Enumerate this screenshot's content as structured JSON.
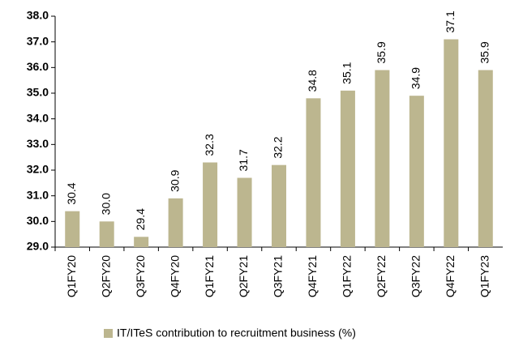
{
  "chart_data": {
    "type": "bar",
    "categories": [
      "Q1FY20",
      "Q2FY20",
      "Q3FY20",
      "Q4FY20",
      "Q1FY21",
      "Q2FY21",
      "Q3FY21",
      "Q4FY21",
      "Q1FY22",
      "Q2FY22",
      "Q3FY22",
      "Q4FY22",
      "Q1FY23"
    ],
    "series": [
      {
        "name": "IT/ITeS contribution to recruitment business (%)",
        "color": "#bcb68f",
        "values": [
          30.4,
          30.0,
          29.4,
          30.9,
          32.3,
          31.7,
          32.2,
          34.8,
          35.1,
          35.9,
          34.9,
          37.1,
          35.9
        ],
        "value_labels": [
          "30.4",
          "30.0",
          "29.4",
          "30.9",
          "32.3",
          "31.7",
          "32.2",
          "34.8",
          "35.1",
          "35.9",
          "34.9",
          "37.1",
          "35.9"
        ]
      }
    ],
    "ylim": [
      29,
      38
    ],
    "yticks": [
      {
        "value": 29,
        "label": "29.0"
      },
      {
        "value": 30,
        "label": "30.0"
      },
      {
        "value": 31,
        "label": "31.0"
      },
      {
        "value": 32,
        "label": "32.0"
      },
      {
        "value": 33,
        "label": "33.0"
      },
      {
        "value": 34,
        "label": "34.0"
      },
      {
        "value": 35,
        "label": "35.0"
      },
      {
        "value": 36,
        "label": "36.0"
      },
      {
        "value": 37,
        "label": "37.0"
      },
      {
        "value": 38,
        "label": "38.0"
      }
    ],
    "grid": false,
    "legend": "bottom"
  }
}
